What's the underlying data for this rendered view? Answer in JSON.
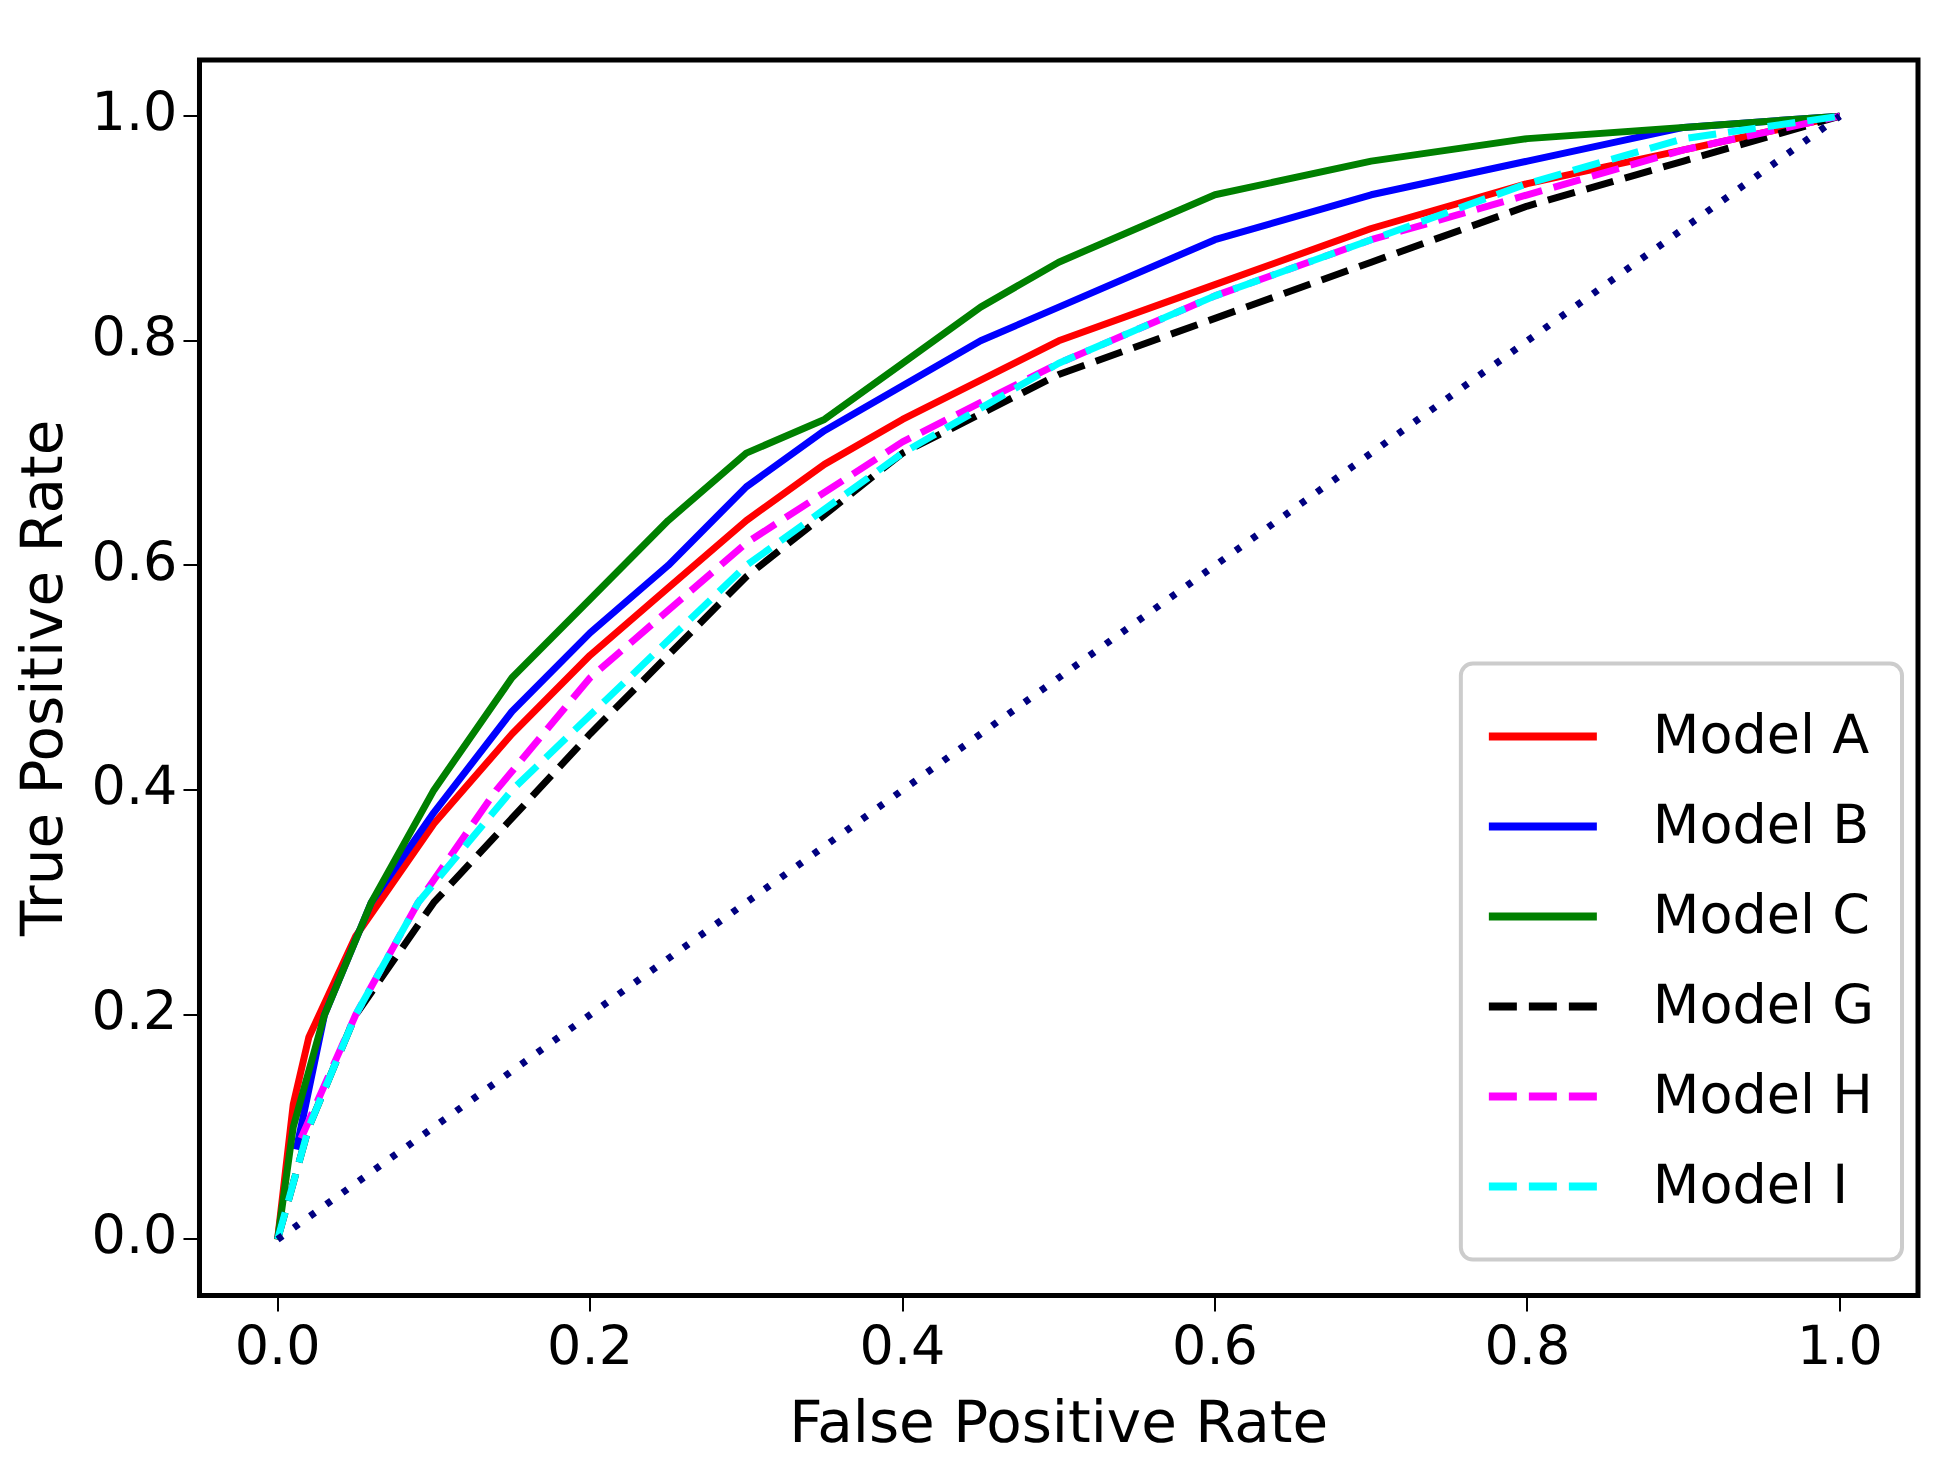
{
  "chart_data": {
    "type": "line",
    "xlabel": "False Positive Rate",
    "ylabel": "True Positive Rate",
    "xlim": [
      -0.05,
      1.05
    ],
    "ylim": [
      -0.05,
      1.05
    ],
    "xticks": [
      {
        "value": 0,
        "label": "0.0"
      },
      {
        "value": 0.2,
        "label": "0.2"
      },
      {
        "value": 0.4,
        "label": "0.4"
      },
      {
        "value": 0.6,
        "label": "0.6"
      },
      {
        "value": 0.8,
        "label": "0.8"
      },
      {
        "value": 1,
        "label": "1.0"
      }
    ],
    "yticks": [
      {
        "value": 0,
        "label": "0.0"
      },
      {
        "value": 0.2,
        "label": "0.2"
      },
      {
        "value": 0.4,
        "label": "0.4"
      },
      {
        "value": 0.6,
        "label": "0.6"
      },
      {
        "value": 0.8,
        "label": "0.8"
      },
      {
        "value": 1,
        "label": "1.0"
      }
    ],
    "grid": false,
    "legend": "lower right",
    "marker": "none",
    "series": [
      {
        "name": "Model A",
        "color": "#ff0000",
        "line_style": "solid",
        "x": [
          0,
          0.01,
          0.02,
          0.05,
          0.1,
          0.15,
          0.2,
          0.25,
          0.3,
          0.35,
          0.4,
          0.5,
          0.6,
          0.7,
          0.8,
          0.9,
          1
        ],
        "values": [
          0,
          0.12,
          0.18,
          0.27,
          0.37,
          0.45,
          0.52,
          0.58,
          0.64,
          0.69,
          0.73,
          0.8,
          0.85,
          0.9,
          0.94,
          0.97,
          1
        ]
      },
      {
        "name": "Model B",
        "color": "#0000ff",
        "line_style": "solid",
        "x": [
          0.012,
          0.03,
          0.06,
          0.1,
          0.15,
          0.2,
          0.25,
          0.3,
          0.35,
          0.4,
          0.45,
          0.5,
          0.6,
          0.7,
          0.8,
          0.9,
          1
        ],
        "values": [
          0.08,
          0.2,
          0.3,
          0.38,
          0.47,
          0.54,
          0.6,
          0.67,
          0.72,
          0.76,
          0.8,
          0.83,
          0.89,
          0.93,
          0.96,
          0.99,
          1
        ]
      },
      {
        "name": "Model C",
        "color": "#008000",
        "line_style": "solid",
        "x": [
          0,
          0.01,
          0.03,
          0.06,
          0.1,
          0.15,
          0.2,
          0.25,
          0.3,
          0.35,
          0.4,
          0.45,
          0.5,
          0.6,
          0.7,
          0.8,
          0.9,
          1
        ],
        "values": [
          0,
          0.1,
          0.2,
          0.3,
          0.4,
          0.5,
          0.57,
          0.64,
          0.7,
          0.73,
          0.78,
          0.83,
          0.87,
          0.93,
          0.96,
          0.98,
          0.99,
          1
        ]
      },
      {
        "name": "Model G",
        "color": "#000000",
        "line_style": "dashed",
        "x": [
          0,
          0.02,
          0.05,
          0.1,
          0.16,
          0.2,
          0.25,
          0.3,
          0.4,
          0.5,
          0.6,
          0.7,
          0.8,
          0.9,
          1
        ],
        "values": [
          0,
          0.1,
          0.2,
          0.3,
          0.39,
          0.45,
          0.52,
          0.59,
          0.7,
          0.77,
          0.82,
          0.87,
          0.92,
          0.96,
          1
        ]
      },
      {
        "name": "Model H",
        "color": "#ff00ff",
        "line_style": "dashed",
        "x": [
          0.015,
          0.05,
          0.09,
          0.14,
          0.2,
          0.25,
          0.3,
          0.4,
          0.5,
          0.6,
          0.7,
          0.8,
          0.9,
          1
        ],
        "values": [
          0.09,
          0.2,
          0.3,
          0.4,
          0.5,
          0.56,
          0.62,
          0.71,
          0.78,
          0.84,
          0.89,
          0.93,
          0.97,
          1
        ]
      },
      {
        "name": "Model I",
        "color": "#00ffff",
        "line_style": "dashed",
        "x": [
          0,
          0.02,
          0.05,
          0.09,
          0.15,
          0.21,
          0.3,
          0.4,
          0.5,
          0.6,
          0.7,
          0.8,
          0.9,
          1
        ],
        "values": [
          0,
          0.1,
          0.2,
          0.3,
          0.4,
          0.48,
          0.6,
          0.7,
          0.78,
          0.84,
          0.89,
          0.94,
          0.98,
          1
        ]
      },
      {
        "color": "#000080",
        "line_style": "dotted",
        "x": [
          0,
          1
        ],
        "values": [
          0,
          1
        ]
      }
    ]
  }
}
